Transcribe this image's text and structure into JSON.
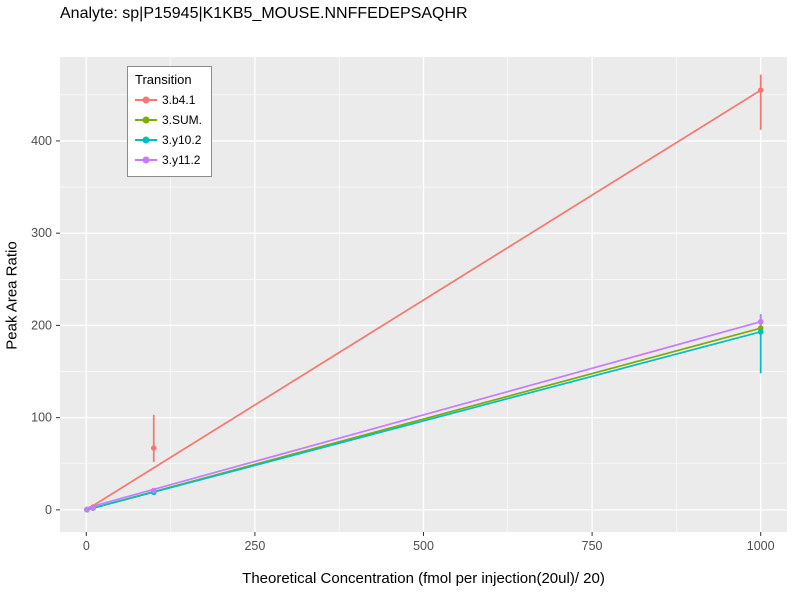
{
  "chart_data": {
    "type": "line",
    "title": "Analyte: sp|P15945|K1KB5_MOUSE.NNFFEDEPSAQHR",
    "xlabel": "Theoretical Concentration (fmol per injection(20ul)/ 20)",
    "ylabel": "Peak Area Ratio",
    "legend_title": "Transition",
    "legend_position": "top-left-inside",
    "grid": "on",
    "panel_background": "#EBEBEB",
    "gridline_color": "#FFFFFF",
    "tick_label_color": "#4D4D4D",
    "xlim": [
      -39,
      1039
    ],
    "ylim": [
      -24,
      491
    ],
    "x_ticks": [
      0,
      250,
      500,
      750,
      1000
    ],
    "y_ticks": [
      0,
      100,
      200,
      300,
      400
    ],
    "x_minor_ticks": [
      125,
      375,
      625,
      875
    ],
    "y_minor_ticks": [
      50,
      150,
      250,
      350,
      450
    ],
    "series": [
      {
        "name": "3.b4.1",
        "color": "#F8766D",
        "fit_line": [
          {
            "x": 0,
            "y": 0
          },
          {
            "x": 1000,
            "y": 455
          }
        ],
        "points": [
          {
            "x": 1,
            "y": 0.3
          },
          {
            "x": 10,
            "y": 3
          },
          {
            "x": 100,
            "y": 67,
            "ymin": 52,
            "ymax": 103
          },
          {
            "x": 1000,
            "y": 455,
            "ymin": 412,
            "ymax": 472
          }
        ]
      },
      {
        "name": "3.SUM.",
        "color": "#7CAE00",
        "fit_line": [
          {
            "x": 0,
            "y": 0
          },
          {
            "x": 1000,
            "y": 197
          }
        ],
        "points": [
          {
            "x": 1,
            "y": 0.2
          },
          {
            "x": 10,
            "y": 2
          },
          {
            "x": 100,
            "y": 20
          },
          {
            "x": 1000,
            "y": 197,
            "ymin": 189,
            "ymax": 205
          }
        ]
      },
      {
        "name": "3.y10.2",
        "color": "#00BFC4",
        "fit_line": [
          {
            "x": 0,
            "y": 0
          },
          {
            "x": 1000,
            "y": 193
          }
        ],
        "points": [
          {
            "x": 1,
            "y": 0.2
          },
          {
            "x": 10,
            "y": 2
          },
          {
            "x": 100,
            "y": 19
          },
          {
            "x": 1000,
            "y": 193,
            "ymin": 148,
            "ymax": 212
          }
        ]
      },
      {
        "name": "3.y11.2",
        "color": "#C77CFF",
        "fit_line": [
          {
            "x": 0,
            "y": 2
          },
          {
            "x": 1000,
            "y": 204
          }
        ],
        "points": [
          {
            "x": 1,
            "y": 0.3
          },
          {
            "x": 10,
            "y": 2
          },
          {
            "x": 100,
            "y": 21
          },
          {
            "x": 1000,
            "y": 204,
            "ymin": 196,
            "ymax": 211
          }
        ]
      }
    ]
  }
}
